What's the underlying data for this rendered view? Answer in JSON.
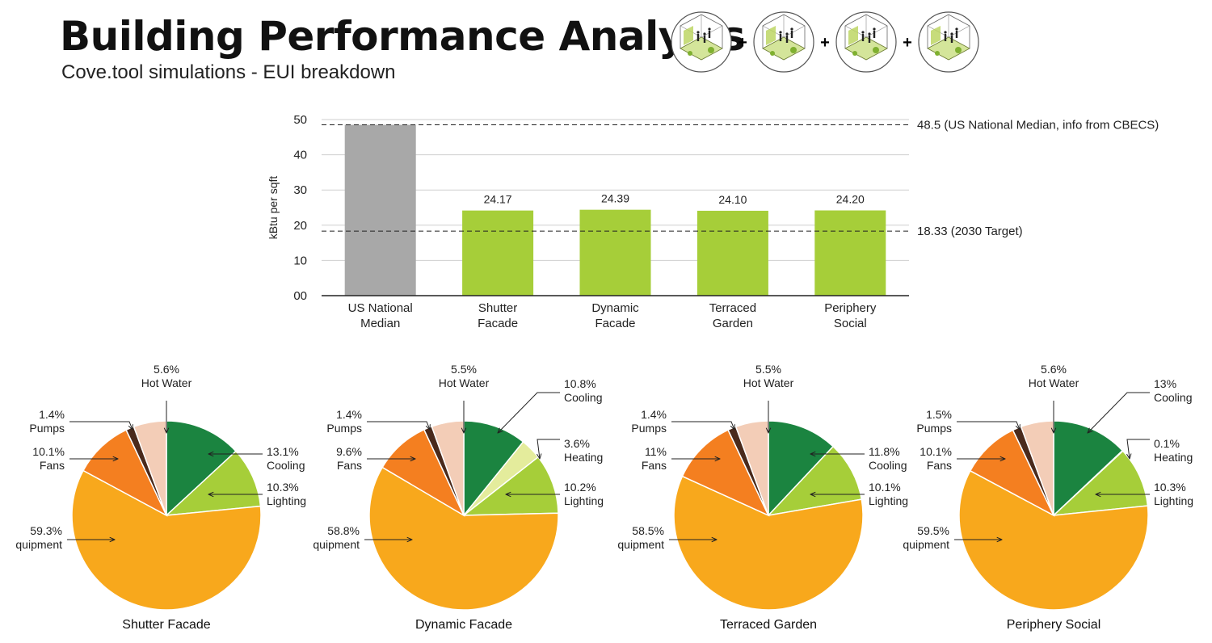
{
  "header": {
    "title": "Building Performance Analysis",
    "subtitle": "Cove.tool simulations - EUI breakdown"
  },
  "diagram_icons": [
    "building-diagram-icon",
    "building-diagram-icon",
    "building-diagram-icon",
    "building-diagram-icon"
  ],
  "diagram_separator": "+",
  "chart_data": [
    {
      "type": "bar",
      "ylabel": "kBtu per sqft",
      "ylim": [
        0,
        50
      ],
      "yticks": [
        "00",
        "10",
        "20",
        "30",
        "40",
        "50"
      ],
      "grid": true,
      "categories": [
        [
          "US National",
          "Median"
        ],
        [
          "Shutter",
          "Facade"
        ],
        [
          "Dynamic",
          "Facade"
        ],
        [
          "Terraced",
          "Garden"
        ],
        [
          "Periphery",
          "Social"
        ]
      ],
      "values": [
        48.5,
        24.17,
        24.39,
        24.1,
        24.2
      ],
      "value_labels": [
        "",
        "24.17",
        "24.39",
        "24.10",
        "24.20"
      ],
      "reference_lines": [
        {
          "value": 48.5,
          "label": "48.5  (US National Median, info from CBECS)"
        },
        {
          "value": 18.33,
          "label": "18.33 (2030 Target)"
        }
      ],
      "colors": {
        "median": "#a8a8a8",
        "scheme": "#a6ce39"
      }
    },
    {
      "type": "pie",
      "title": "Shutter Facade",
      "slices": [
        {
          "name": "Cooling",
          "value": 13.1,
          "label": "13.1%"
        },
        {
          "name": "Lighting",
          "value": 10.3,
          "label": "10.3%"
        },
        {
          "name": "Equipment",
          "value": 59.3,
          "label": "59.3%"
        },
        {
          "name": "Fans",
          "value": 10.1,
          "label": "10.1%"
        },
        {
          "name": "Pumps",
          "value": 1.4,
          "label": "1.4%"
        },
        {
          "name": "Hot Water",
          "value": 5.6,
          "label": "5.6%"
        }
      ]
    },
    {
      "type": "pie",
      "title": "Dynamic Facade",
      "slices": [
        {
          "name": "Cooling",
          "value": 10.8,
          "label": "10.8%"
        },
        {
          "name": "Heating",
          "value": 3.6,
          "label": "3.6%"
        },
        {
          "name": "Lighting",
          "value": 10.2,
          "label": "10.2%"
        },
        {
          "name": "Equipment",
          "value": 58.8,
          "label": "58.8%"
        },
        {
          "name": "Fans",
          "value": 9.6,
          "label": "9.6%"
        },
        {
          "name": "Pumps",
          "value": 1.4,
          "label": "1.4%"
        },
        {
          "name": "Hot Water",
          "value": 5.5,
          "label": "5.5%"
        }
      ]
    },
    {
      "type": "pie",
      "title": "Terraced Garden",
      "slices": [
        {
          "name": "Cooling",
          "value": 11.8,
          "label": "11.8%"
        },
        {
          "name": "Lighting",
          "value": 10.1,
          "label": "10.1%"
        },
        {
          "name": "Equipment",
          "value": 58.5,
          "label": "58.5%"
        },
        {
          "name": "Fans",
          "value": 11,
          "label": "11%"
        },
        {
          "name": "Pumps",
          "value": 1.4,
          "label": "1.4%"
        },
        {
          "name": "Hot Water",
          "value": 5.5,
          "label": "5.5%"
        }
      ]
    },
    {
      "type": "pie",
      "title": "Periphery Social",
      "slices": [
        {
          "name": "Cooling",
          "value": 13,
          "label": "13%"
        },
        {
          "name": "Heating",
          "value": 0.1,
          "label": "0.1%"
        },
        {
          "name": "Lighting",
          "value": 10.3,
          "label": "10.3%"
        },
        {
          "name": "Equipment",
          "value": 59.5,
          "label": "59.5%"
        },
        {
          "name": "Fans",
          "value": 10.1,
          "label": "10.1%"
        },
        {
          "name": "Pumps",
          "value": 1.5,
          "label": "1.5%"
        },
        {
          "name": "Hot Water",
          "value": 5.6,
          "label": "5.6%"
        }
      ]
    }
  ],
  "slice_colors": {
    "Cooling": "#1b8440",
    "Heating": "#e4ec9c",
    "Lighting": "#a6ce39",
    "Equipment": "#f8a81c",
    "Fans": "#f47f20",
    "Pumps": "#4a2a1c",
    "Hot Water": "#f3cdb7"
  }
}
